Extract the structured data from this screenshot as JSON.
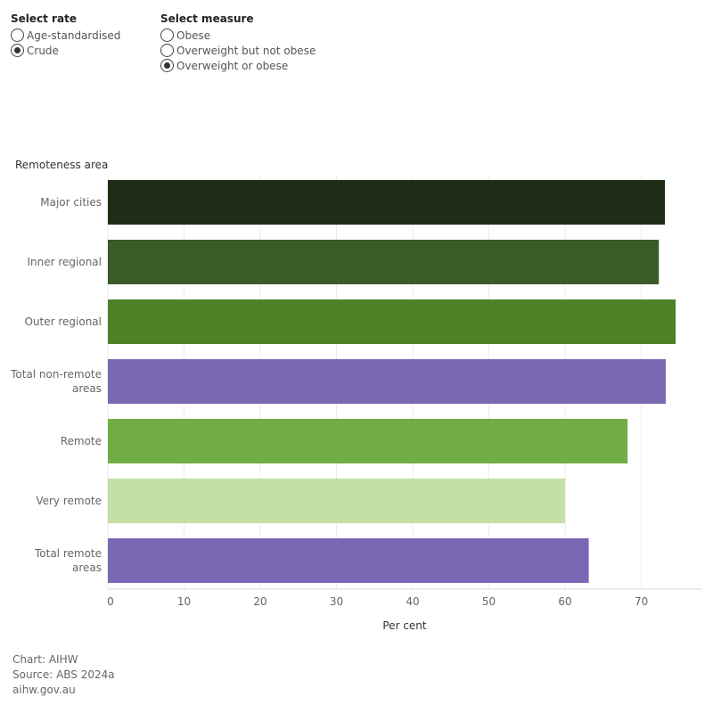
{
  "filters": {
    "rate": {
      "title": "Select rate",
      "options": [
        {
          "label": "Age-standardised",
          "checked": false
        },
        {
          "label": "Crude",
          "checked": true
        }
      ]
    },
    "measure": {
      "title": "Select measure",
      "options": [
        {
          "label": "Obese",
          "checked": false
        },
        {
          "label": "Overweight but not obese",
          "checked": false
        },
        {
          "label": "Overweight or obese",
          "checked": true
        }
      ]
    }
  },
  "chart_data": {
    "type": "bar",
    "orientation": "horizontal",
    "ylabel": "Remoteness area",
    "xlabel": "Per cent",
    "xlim": [
      0,
      78
    ],
    "xticks": [
      0,
      10,
      20,
      30,
      40,
      50,
      60,
      70
    ],
    "grid": true,
    "categories": [
      [
        "Major cities"
      ],
      [
        "Inner regional"
      ],
      [
        "Outer regional"
      ],
      [
        "Total non-remote",
        "areas"
      ],
      [
        "Remote"
      ],
      [
        "Very remote"
      ],
      [
        "Total remote",
        "areas"
      ]
    ],
    "values": [
      73.1,
      72.3,
      74.5,
      73.2,
      68.2,
      60.0,
      63.1
    ],
    "colors": [
      "#1f2d16",
      "#3a5a28",
      "#4d8229",
      "#7b68b4",
      "#71ad47",
      "#c3e0a6",
      "#7b68b4"
    ]
  },
  "footer": {
    "chart": "Chart: AIHW",
    "source": "Source: ABS 2024a",
    "site": "aihw.gov.au"
  }
}
